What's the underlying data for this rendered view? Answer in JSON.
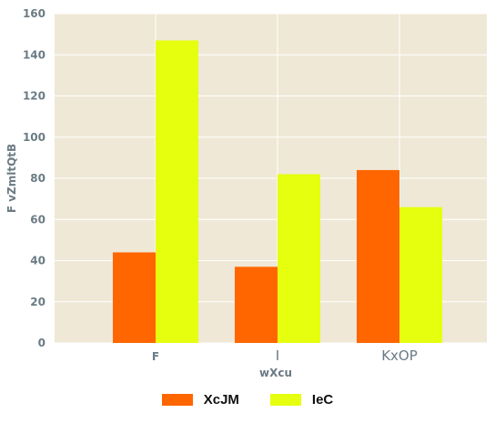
{
  "chart_data": {
    "type": "bar",
    "categories": [
      "F",
      "I",
      "KxOP"
    ],
    "series": [
      {
        "name": "XcJM",
        "values": [
          44,
          37,
          84
        ],
        "color": "#ff6600"
      },
      {
        "name": "IeC",
        "values": [
          147,
          82,
          66
        ],
        "color": "#e6ff0f"
      }
    ],
    "xlabel": "wXcu",
    "ylabel": "F vZmltQtB",
    "ylim": [
      0,
      160
    ],
    "yticks": [
      0,
      20,
      40,
      60,
      80,
      100,
      120,
      140,
      160
    ],
    "grid": true,
    "background": "#efe8d6",
    "legend_position": "bottom-center"
  }
}
